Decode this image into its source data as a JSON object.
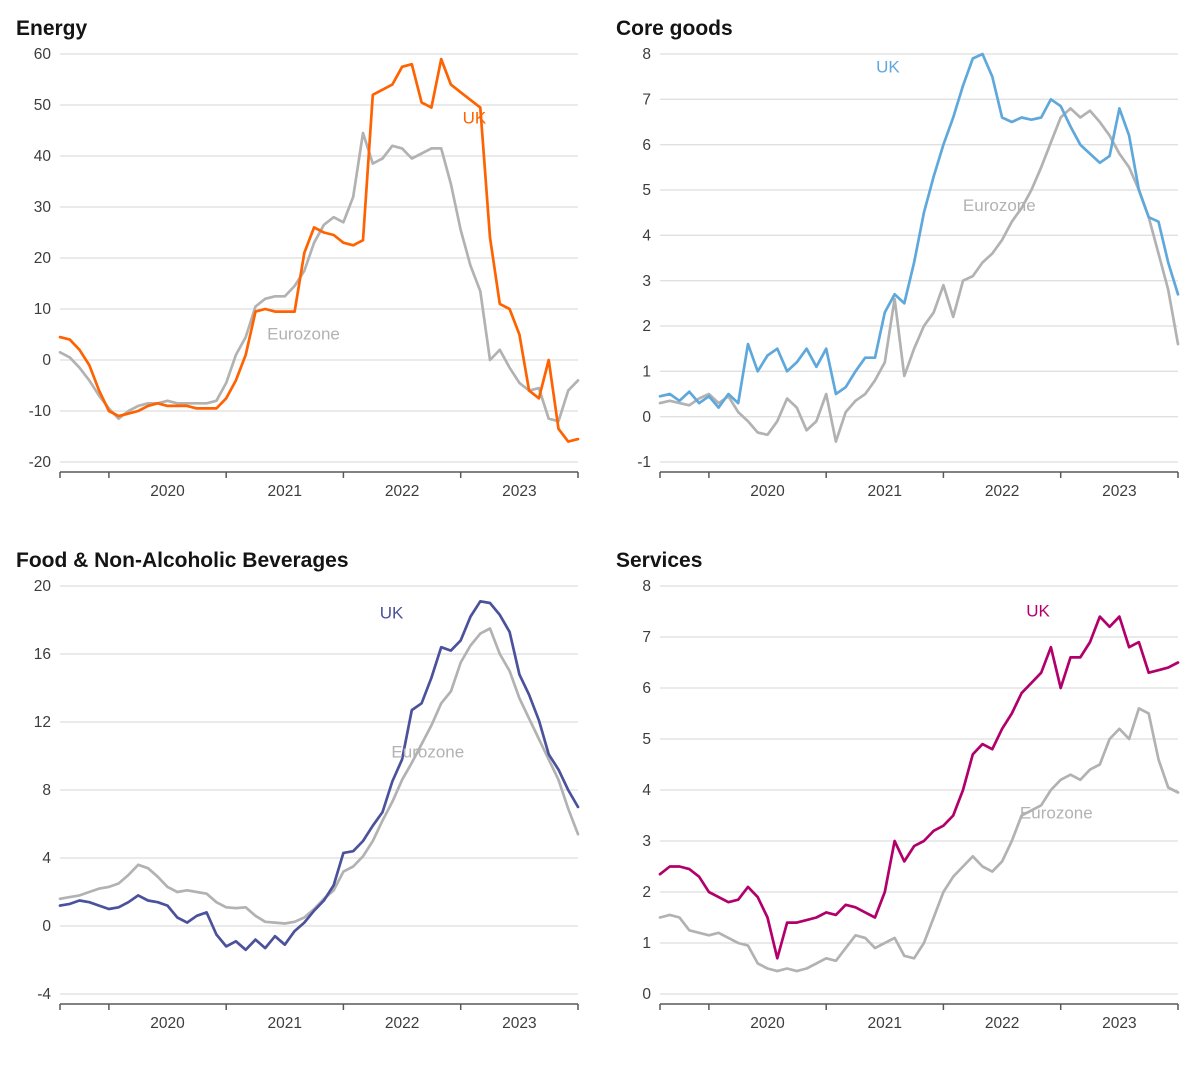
{
  "style": {
    "background": "#ffffff",
    "grid_color": "#d6d6d6",
    "axis_color": "#595959",
    "tick_text_color": "#3d3d3d",
    "title_color": "#141414",
    "eurozone_gray": "#b2b2b2"
  },
  "chart_data": [
    {
      "type": "line",
      "title": "Energy",
      "grid": "horizontal",
      "ylim": [
        -20,
        60
      ],
      "yticks": [
        -20,
        -10,
        0,
        10,
        20,
        30,
        40,
        50,
        60
      ],
      "x_axis": {
        "tick_indices": [
          0,
          5,
          17,
          29,
          41,
          53
        ],
        "labels": [
          {
            "text": "2020",
            "idx": 11
          },
          {
            "text": "2021",
            "idx": 23
          },
          {
            "text": "2022",
            "idx": 35
          },
          {
            "text": "2023",
            "idx": 47
          }
        ]
      },
      "series": [
        {
          "name": "Eurozone",
          "color": "#b2b2b2",
          "values": [
            1.5,
            0.5,
            -1.5,
            -4.0,
            -7.0,
            -9.5,
            -11.5,
            -10.0,
            -9.0,
            -8.5,
            -8.5,
            -8.0,
            -8.5,
            -8.5,
            -8.5,
            -8.5,
            -8.0,
            -4.5,
            1.0,
            4.5,
            10.5,
            12.0,
            12.5,
            12.5,
            14.5,
            17.5,
            23.0,
            26.5,
            28.0,
            27.0,
            32.0,
            44.5,
            38.5,
            39.5,
            42.0,
            41.5,
            39.5,
            40.5,
            41.5,
            41.5,
            34.5,
            25.5,
            18.5,
            13.5,
            0.0,
            2.0,
            -1.5,
            -4.5,
            -6.0,
            -5.5,
            -11.5,
            -12.0,
            -6.0,
            -4.0
          ]
        },
        {
          "name": "UK",
          "color": "#ff6200",
          "values": [
            4.5,
            4.0,
            2.0,
            -1.0,
            -6.0,
            -10.0,
            -11.0,
            -10.5,
            -10.0,
            -9.0,
            -8.5,
            -9.0,
            -9.0,
            -9.0,
            -9.5,
            -9.5,
            -9.5,
            -7.5,
            -4.0,
            1.0,
            9.5,
            10.0,
            9.5,
            9.5,
            9.5,
            21.0,
            26.0,
            25.0,
            24.5,
            23.0,
            22.5,
            23.5,
            52.0,
            53.0,
            54.0,
            57.5,
            58.0,
            50.5,
            49.5,
            59.0,
            54.0,
            52.5,
            51.0,
            49.5,
            24.0,
            11.0,
            10.0,
            5.0,
            -6.0,
            -7.5,
            0.0,
            -13.5,
            -16.0,
            -15.5
          ]
        }
      ],
      "labels": [
        {
          "text": "UK",
          "color": "#ff6200",
          "fx": 0.8,
          "fy": 0.17
        },
        {
          "text": "Eurozone",
          "color": "#b2b2b2",
          "fx": 0.47,
          "fy": 0.7
        }
      ]
    },
    {
      "type": "line",
      "title": "Core goods",
      "grid": "horizontal",
      "ylim": [
        -1,
        8
      ],
      "yticks": [
        -1,
        0,
        1,
        2,
        3,
        4,
        5,
        6,
        7,
        8
      ],
      "x_axis": {
        "tick_indices": [
          0,
          5,
          17,
          29,
          41,
          53
        ],
        "labels": [
          {
            "text": "2020",
            "idx": 11
          },
          {
            "text": "2021",
            "idx": 23
          },
          {
            "text": "2022",
            "idx": 35
          },
          {
            "text": "2023",
            "idx": 47
          }
        ]
      },
      "series": [
        {
          "name": "Eurozone",
          "color": "#b2b2b2",
          "values": [
            0.3,
            0.35,
            0.3,
            0.25,
            0.4,
            0.5,
            0.3,
            0.45,
            0.1,
            -0.1,
            -0.35,
            -0.4,
            -0.1,
            0.4,
            0.2,
            -0.3,
            -0.1,
            0.5,
            -0.55,
            0.1,
            0.35,
            0.5,
            0.8,
            1.2,
            2.6,
            0.9,
            1.5,
            2.0,
            2.3,
            2.9,
            2.2,
            3.0,
            3.1,
            3.4,
            3.6,
            3.9,
            4.3,
            4.6,
            5.0,
            5.5,
            6.05,
            6.6,
            6.8,
            6.6,
            6.75,
            6.5,
            6.2,
            5.8,
            5.5,
            5.0,
            4.4,
            3.6,
            2.8,
            1.6
          ]
        },
        {
          "name": "UK",
          "color": "#5fa8dc",
          "values": [
            0.45,
            0.5,
            0.35,
            0.55,
            0.3,
            0.45,
            0.2,
            0.5,
            0.3,
            1.6,
            1.0,
            1.35,
            1.5,
            1.0,
            1.2,
            1.5,
            1.1,
            1.5,
            0.5,
            0.65,
            1.0,
            1.3,
            1.3,
            2.3,
            2.7,
            2.5,
            3.4,
            4.5,
            5.3,
            6.0,
            6.6,
            7.3,
            7.9,
            8.0,
            7.5,
            6.6,
            6.5,
            6.6,
            6.55,
            6.6,
            7.0,
            6.85,
            6.4,
            6.0,
            5.8,
            5.6,
            5.75,
            6.8,
            6.2,
            5.0,
            4.4,
            4.3,
            3.4,
            2.7
          ]
        }
      ],
      "labels": [
        {
          "text": "UK",
          "color": "#5fa8dc",
          "fx": 0.44,
          "fy": 0.045
        },
        {
          "text": "Eurozone",
          "color": "#b2b2b2",
          "fx": 0.655,
          "fy": 0.385
        }
      ]
    },
    {
      "type": "line",
      "title": "Food & Non-Alcoholic Beverages",
      "grid": "horizontal",
      "ylim": [
        -4,
        20
      ],
      "yticks": [
        -4,
        0,
        4,
        8,
        12,
        16,
        20
      ],
      "x_axis": {
        "tick_indices": [
          0,
          5,
          17,
          29,
          41,
          53
        ],
        "labels": [
          {
            "text": "2020",
            "idx": 11
          },
          {
            "text": "2021",
            "idx": 23
          },
          {
            "text": "2022",
            "idx": 35
          },
          {
            "text": "2023",
            "idx": 47
          }
        ]
      },
      "series": [
        {
          "name": "Eurozone",
          "color": "#b2b2b2",
          "values": [
            1.6,
            1.7,
            1.8,
            2.0,
            2.2,
            2.3,
            2.5,
            3.0,
            3.6,
            3.4,
            2.9,
            2.3,
            2.0,
            2.1,
            2.0,
            1.9,
            1.4,
            1.1,
            1.05,
            1.1,
            0.6,
            0.25,
            0.2,
            0.15,
            0.25,
            0.5,
            1.0,
            1.6,
            2.1,
            3.2,
            3.5,
            4.1,
            5.0,
            6.2,
            7.3,
            8.6,
            9.6,
            10.7,
            11.8,
            13.1,
            13.8,
            15.5,
            16.5,
            17.2,
            17.5,
            16.0,
            15.0,
            13.4,
            12.2,
            11.0,
            9.8,
            8.6,
            6.9,
            5.4
          ]
        },
        {
          "name": "UK",
          "color": "#4b519b",
          "values": [
            1.2,
            1.3,
            1.5,
            1.4,
            1.2,
            1.0,
            1.1,
            1.4,
            1.8,
            1.5,
            1.4,
            1.2,
            0.5,
            0.2,
            0.6,
            0.8,
            -0.5,
            -1.2,
            -0.9,
            -1.4,
            -0.8,
            -1.3,
            -0.6,
            -1.1,
            -0.3,
            0.2,
            0.9,
            1.5,
            2.4,
            4.3,
            4.4,
            5.0,
            5.9,
            6.7,
            8.5,
            9.8,
            12.7,
            13.1,
            14.6,
            16.4,
            16.2,
            16.8,
            18.2,
            19.1,
            19.0,
            18.3,
            17.3,
            14.8,
            13.6,
            12.1,
            10.1,
            9.2,
            8.0,
            7.0
          ]
        }
      ],
      "labels": [
        {
          "text": "UK",
          "color": "#4b519b",
          "fx": 0.64,
          "fy": 0.08
        },
        {
          "text": "Eurozone",
          "color": "#b2b2b2",
          "fx": 0.71,
          "fy": 0.42
        }
      ]
    },
    {
      "type": "line",
      "title": "Services",
      "grid": "horizontal",
      "ylim": [
        0,
        8
      ],
      "yticks": [
        0,
        1,
        2,
        3,
        4,
        5,
        6,
        7,
        8
      ],
      "x_axis": {
        "tick_indices": [
          0,
          5,
          17,
          29,
          41,
          53
        ],
        "labels": [
          {
            "text": "2020",
            "idx": 11
          },
          {
            "text": "2021",
            "idx": 23
          },
          {
            "text": "2022",
            "idx": 35
          },
          {
            "text": "2023",
            "idx": 47
          }
        ]
      },
      "series": [
        {
          "name": "Eurozone",
          "color": "#b2b2b2",
          "values": [
            1.5,
            1.55,
            1.5,
            1.25,
            1.2,
            1.15,
            1.2,
            1.1,
            1.0,
            0.95,
            0.6,
            0.5,
            0.45,
            0.5,
            0.45,
            0.5,
            0.6,
            0.7,
            0.65,
            0.9,
            1.15,
            1.1,
            0.9,
            1.0,
            1.1,
            0.75,
            0.7,
            1.0,
            1.5,
            2.0,
            2.3,
            2.5,
            2.7,
            2.5,
            2.4,
            2.6,
            3.0,
            3.5,
            3.6,
            3.7,
            4.0,
            4.2,
            4.3,
            4.2,
            4.4,
            4.5,
            5.0,
            5.2,
            5.0,
            5.6,
            5.5,
            4.6,
            4.05,
            3.95
          ]
        },
        {
          "name": "UK",
          "color": "#b2006b",
          "values": [
            2.35,
            2.5,
            2.5,
            2.45,
            2.3,
            2.0,
            1.9,
            1.8,
            1.85,
            2.1,
            1.9,
            1.5,
            0.7,
            1.4,
            1.4,
            1.45,
            1.5,
            1.6,
            1.55,
            1.75,
            1.7,
            1.6,
            1.5,
            2.0,
            3.0,
            2.6,
            2.9,
            3.0,
            3.2,
            3.3,
            3.5,
            4.0,
            4.7,
            4.9,
            4.8,
            5.2,
            5.5,
            5.9,
            6.1,
            6.3,
            6.8,
            6.0,
            6.6,
            6.6,
            6.9,
            7.4,
            7.2,
            7.4,
            6.8,
            6.9,
            6.3,
            6.35,
            6.4,
            6.5
          ]
        }
      ],
      "labels": [
        {
          "text": "UK",
          "color": "#b2006b",
          "fx": 0.73,
          "fy": 0.075
        },
        {
          "text": "Eurozone",
          "color": "#b2b2b2",
          "fx": 0.765,
          "fy": 0.57
        }
      ]
    }
  ]
}
